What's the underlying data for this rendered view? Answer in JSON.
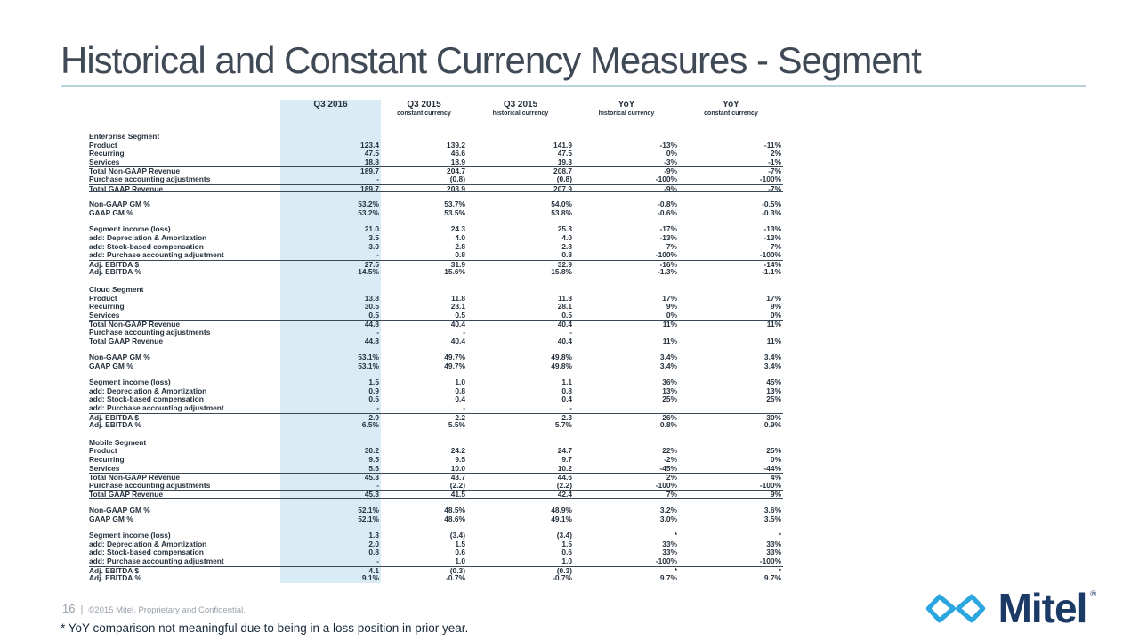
{
  "slide": {
    "title": "Historical and Constant Currency Measures - Segment",
    "footnote": "* YoY comparison not meaningful due to being in a loss position in prior year."
  },
  "footer": {
    "page_number": "16",
    "separator": "|",
    "copyright": "©2015 Mitel. Proprietary and Confidential."
  },
  "logo": {
    "text": "Mitel",
    "registered_mark": "®",
    "icon": "infinity-icon",
    "icon_color": "#2BA6DE",
    "text_color": "#1B3A66"
  },
  "theme": {
    "highlight_column_color": "#D9ECF5",
    "title_color": "#3F4A56",
    "rule_color": "#B8D2E0",
    "table_text_color": "#25313D"
  },
  "table": {
    "columns": [
      {
        "label": "Q3 2016",
        "sublabel": ""
      },
      {
        "label": "Q3 2015",
        "sublabel": "constant currency"
      },
      {
        "label": "Q3 2015",
        "sublabel": "historical currency"
      },
      {
        "label": "YoY",
        "sublabel": "historical currency"
      },
      {
        "label": "YoY",
        "sublabel": "constant currency"
      }
    ],
    "segments": [
      {
        "name": "Enterprise Segment",
        "rows": [
          {
            "label": "Product",
            "values": [
              "123.4",
              "139.2",
              "141.9",
              "-13%",
              "-11%"
            ]
          },
          {
            "label": "Recurring",
            "values": [
              "47.5",
              "46.6",
              "47.5",
              "0%",
              "2%"
            ]
          },
          {
            "label": "Services",
            "values": [
              "18.8",
              "18.9",
              "19.3",
              "-3%",
              "-1%"
            ]
          },
          {
            "label": "Total Non-GAAP Revenue",
            "values": [
              "189.7",
              "204.7",
              "208.7",
              "-9%",
              "-7%"
            ],
            "top_border": true
          },
          {
            "label": "Purchase accounting adjustments",
            "values": [
              "-",
              "(0.8)",
              "(0.8)",
              "-100%",
              "-100%"
            ]
          },
          {
            "label": "Total GAAP Revenue",
            "values": [
              "189.7",
              "203.9",
              "207.9",
              "-9%",
              "-7%"
            ],
            "top_border": true,
            "bottom_border": true
          },
          {
            "label": "Non-GAAP GM %",
            "values": [
              "53.2%",
              "53.7%",
              "54.0%",
              "-0.8%",
              "-0.5%"
            ],
            "gap_before": true
          },
          {
            "label": "GAAP GM %",
            "values": [
              "53.2%",
              "53.5%",
              "53.8%",
              "-0.6%",
              "-0.3%"
            ]
          },
          {
            "label": "Segment income (loss)",
            "values": [
              "21.0",
              "24.3",
              "25.3",
              "-17%",
              "-13%"
            ],
            "gap_before": true
          },
          {
            "label": "add: Depreciation & Amortization",
            "values": [
              "3.5",
              "4.0",
              "4.0",
              "-13%",
              "-13%"
            ]
          },
          {
            "label": "add: Stock-based compensation",
            "values": [
              "3.0",
              "2.8",
              "2.8",
              "7%",
              "7%"
            ]
          },
          {
            "label": "add: Purchase accounting adjustment",
            "values": [
              "-",
              "0.8",
              "0.8",
              "-100%",
              "-100%"
            ]
          },
          {
            "label": "Adj. EBITDA $",
            "values": [
              "27.5",
              "31.9",
              "32.9",
              "-16%",
              "-14%"
            ],
            "top_border": true
          },
          {
            "label": "Adj. EBITDA %",
            "values": [
              "14.5%",
              "15.6%",
              "15.8%",
              "-1.3%",
              "-1.1%"
            ]
          }
        ]
      },
      {
        "name": "Cloud Segment",
        "rows": [
          {
            "label": "Product",
            "values": [
              "13.8",
              "11.8",
              "11.8",
              "17%",
              "17%"
            ]
          },
          {
            "label": "Recurring",
            "values": [
              "30.5",
              "28.1",
              "28.1",
              "9%",
              "9%"
            ]
          },
          {
            "label": "Services",
            "values": [
              "0.5",
              "0.5",
              "0.5",
              "0%",
              "0%"
            ]
          },
          {
            "label": "Total Non-GAAP Revenue",
            "values": [
              "44.8",
              "40.4",
              "40.4",
              "11%",
              "11%"
            ],
            "top_border": true
          },
          {
            "label": "Purchase accounting adjustments",
            "values": [
              "-",
              "-",
              "-",
              "",
              ""
            ]
          },
          {
            "label": "Total GAAP Revenue",
            "values": [
              "44.8",
              "40.4",
              "40.4",
              "11%",
              "11%"
            ],
            "top_border": true,
            "bottom_border": true
          },
          {
            "label": "Non-GAAP GM %",
            "values": [
              "53.1%",
              "49.7%",
              "49.8%",
              "3.4%",
              "3.4%"
            ],
            "gap_before": true
          },
          {
            "label": "GAAP GM %",
            "values": [
              "53.1%",
              "49.7%",
              "49.8%",
              "3.4%",
              "3.4%"
            ]
          },
          {
            "label": "Segment income (loss)",
            "values": [
              "1.5",
              "1.0",
              "1.1",
              "36%",
              "45%"
            ],
            "gap_before": true
          },
          {
            "label": "add: Depreciation & Amortization",
            "values": [
              "0.9",
              "0.8",
              "0.8",
              "13%",
              "13%"
            ]
          },
          {
            "label": "add: Stock-based compensation",
            "values": [
              "0.5",
              "0.4",
              "0.4",
              "25%",
              "25%"
            ]
          },
          {
            "label": "add: Purchase accounting adjustment",
            "values": [
              "-",
              "-",
              "-",
              "",
              ""
            ]
          },
          {
            "label": "Adj. EBITDA $",
            "values": [
              "2.9",
              "2.2",
              "2.3",
              "26%",
              "30%"
            ],
            "top_border": true
          },
          {
            "label": "Adj. EBITDA %",
            "values": [
              "6.5%",
              "5.5%",
              "5.7%",
              "0.8%",
              "0.9%"
            ]
          }
        ]
      },
      {
        "name": "Mobile Segment",
        "rows": [
          {
            "label": "Product",
            "values": [
              "30.2",
              "24.2",
              "24.7",
              "22%",
              "25%"
            ]
          },
          {
            "label": "Recurring",
            "values": [
              "9.5",
              "9.5",
              "9.7",
              "-2%",
              "0%"
            ]
          },
          {
            "label": "Services",
            "values": [
              "5.6",
              "10.0",
              "10.2",
              "-45%",
              "-44%"
            ]
          },
          {
            "label": "Total Non-GAAP Revenue",
            "values": [
              "45.3",
              "43.7",
              "44.6",
              "2%",
              "4%"
            ],
            "top_border": true
          },
          {
            "label": "Purchase accounting adjustments",
            "values": [
              "-",
              "(2.2)",
              "(2.2)",
              "-100%",
              "-100%"
            ]
          },
          {
            "label": "Total GAAP Revenue",
            "values": [
              "45.3",
              "41.5",
              "42.4",
              "7%",
              "9%"
            ],
            "top_border": true,
            "bottom_border": true
          },
          {
            "label": "Non-GAAP GM %",
            "values": [
              "52.1%",
              "48.5%",
              "48.9%",
              "3.2%",
              "3.6%"
            ],
            "gap_before": true
          },
          {
            "label": "GAAP GM %",
            "values": [
              "52.1%",
              "48.6%",
              "49.1%",
              "3.0%",
              "3.5%"
            ]
          },
          {
            "label": "Segment income (loss)",
            "values": [
              "1.3",
              "(3.4)",
              "(3.4)",
              "*",
              "*"
            ],
            "gap_before": true
          },
          {
            "label": "add: Depreciation & Amortization",
            "values": [
              "2.0",
              "1.5",
              "1.5",
              "33%",
              "33%"
            ]
          },
          {
            "label": "add: Stock-based compensation",
            "values": [
              "0.8",
              "0.6",
              "0.6",
              "33%",
              "33%"
            ]
          },
          {
            "label": "add: Purchase accounting adjustment",
            "values": [
              "-",
              "1.0",
              "1.0",
              "-100%",
              "-100%"
            ]
          },
          {
            "label": "Adj. EBITDA $",
            "values": [
              "4.1",
              "(0.3)",
              "(0.3)",
              "*",
              "*"
            ],
            "top_border": true
          },
          {
            "label": "Adj. EBITDA %",
            "values": [
              "9.1%",
              "-0.7%",
              "-0.7%",
              "9.7%",
              "9.7%"
            ]
          }
        ]
      }
    ]
  }
}
